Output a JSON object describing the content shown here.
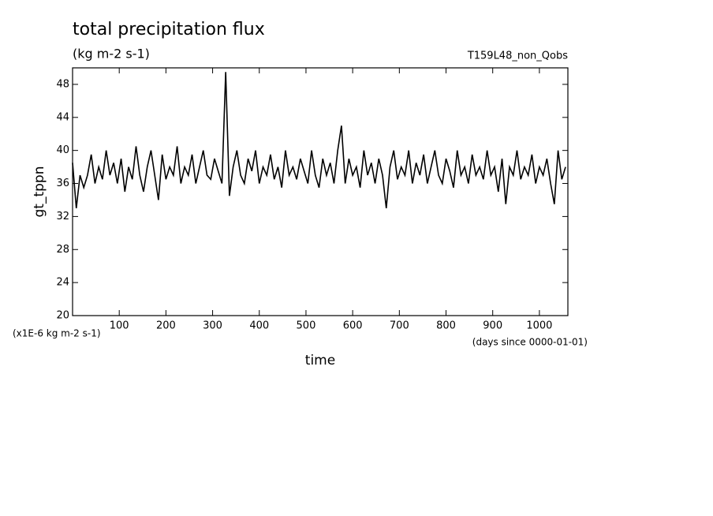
{
  "chart_data": {
    "type": "line",
    "title": "total precipitation flux",
    "subtitle": "(kg m-2 s-1)",
    "experiment": "T159L48_non_Qobs",
    "ylabel": "gt_tppn",
    "yunits": "(x1E-6 kg m-2 s-1)",
    "xlabel": "time",
    "xunits": "(days since 0000-01-01)",
    "xlim": [
      0,
      1061
    ],
    "ylim": [
      20,
      50
    ],
    "xticks": [
      100,
      200,
      300,
      400,
      500,
      600,
      700,
      800,
      900,
      1000
    ],
    "yticks": [
      20,
      24,
      28,
      32,
      36,
      40,
      44,
      48
    ],
    "grid": false,
    "x": [
      0,
      8,
      16,
      24,
      32,
      40,
      48,
      56,
      64,
      72,
      80,
      88,
      96,
      104,
      112,
      120,
      128,
      136,
      144,
      152,
      160,
      168,
      176,
      184,
      192,
      200,
      208,
      216,
      224,
      232,
      240,
      248,
      256,
      264,
      272,
      280,
      288,
      296,
      304,
      312,
      320,
      328,
      336,
      344,
      352,
      360,
      368,
      376,
      384,
      392,
      400,
      408,
      416,
      424,
      432,
      440,
      448,
      456,
      464,
      472,
      480,
      488,
      496,
      504,
      512,
      520,
      528,
      536,
      544,
      552,
      560,
      568,
      576,
      584,
      592,
      600,
      608,
      616,
      624,
      632,
      640,
      648,
      656,
      664,
      672,
      680,
      688,
      696,
      704,
      712,
      720,
      728,
      736,
      744,
      752,
      760,
      768,
      776,
      784,
      792,
      800,
      808,
      816,
      824,
      832,
      840,
      848,
      856,
      864,
      872,
      880,
      888,
      896,
      904,
      912,
      920,
      928,
      936,
      944,
      952,
      960,
      968,
      976,
      984,
      992,
      1000,
      1008,
      1016,
      1024,
      1032,
      1040,
      1048,
      1056
    ],
    "series": [
      {
        "color": "#000000",
        "values": [
          38.5,
          33,
          37,
          35.5,
          37,
          39.5,
          36,
          38,
          36.5,
          40,
          37,
          38.5,
          36,
          39,
          35,
          38,
          36.5,
          40.5,
          37,
          35,
          38,
          40,
          37,
          34,
          39.5,
          36.5,
          38,
          37,
          40.5,
          36,
          38,
          37,
          39.5,
          36,
          38,
          40,
          37,
          36.5,
          39,
          37.5,
          36,
          49.5,
          34.5,
          38,
          40,
          37,
          36,
          39,
          37.5,
          40,
          36,
          38,
          37,
          39.5,
          36.5,
          38,
          35.5,
          40,
          37,
          38,
          36.5,
          39,
          37.5,
          36,
          40,
          37,
          35.5,
          39,
          37,
          38.5,
          36,
          40,
          43,
          36,
          39,
          37,
          38,
          35.5,
          40,
          37,
          38.5,
          36,
          39,
          37,
          33,
          38,
          40,
          36.5,
          38,
          37,
          40,
          36,
          38.5,
          37,
          39.5,
          36,
          38,
          40,
          37,
          36,
          39,
          37.5,
          35.5,
          40,
          37,
          38,
          36,
          39.5,
          37,
          38,
          36.5,
          40,
          37,
          38,
          35,
          39,
          33.5,
          38,
          37,
          40,
          36.5,
          38,
          37,
          39.5,
          36,
          38,
          37,
          39,
          36,
          33.5,
          40,
          36.5,
          38
        ]
      }
    ]
  }
}
